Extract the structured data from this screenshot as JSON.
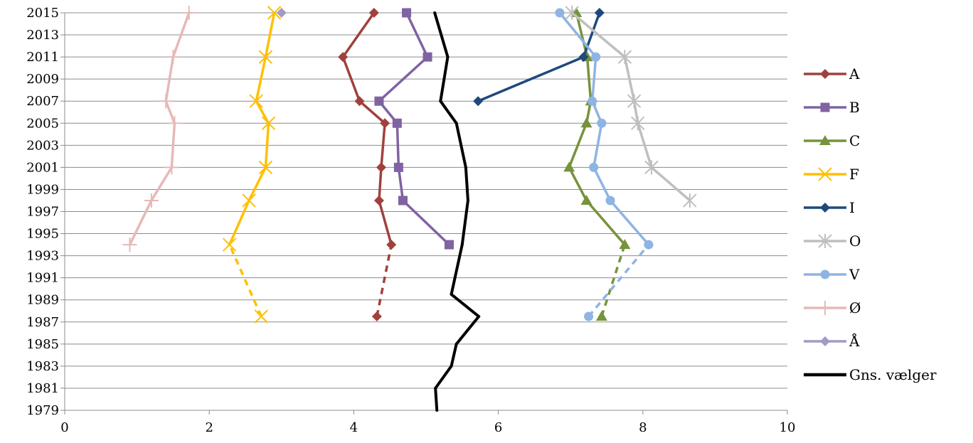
{
  "chart_data": {
    "type": "line",
    "xlim": [
      0,
      10
    ],
    "x_ticks": [
      0,
      2,
      4,
      6,
      8,
      10
    ],
    "x_tick_labels": [
      "0",
      "2",
      "4",
      "6",
      "8",
      "10"
    ],
    "ylim": [
      1979,
      2015
    ],
    "y_ticks": [
      1979,
      1981,
      1983,
      1985,
      1987,
      1989,
      1991,
      1993,
      1995,
      1997,
      1999,
      2001,
      2003,
      2005,
      2007,
      2009,
      2011,
      2013,
      2015
    ],
    "y_tick_labels": [
      "1979",
      "1981",
      "1983",
      "1985",
      "1987",
      "1989",
      "1991",
      "1993",
      "1995",
      "1997",
      "1999",
      "2001",
      "2003",
      "2005",
      "2007",
      "2009",
      "2011",
      "2013",
      "2015"
    ],
    "grid": "horizontal",
    "legend_position": "right",
    "series": [
      {
        "name": "A",
        "color": "#A0413E",
        "marker": "diamond",
        "points": [
          {
            "x": 4.32,
            "y": 1987.5
          },
          {
            "x": 4.52,
            "y": 1994
          },
          {
            "x": 4.35,
            "y": 1998
          },
          {
            "x": 4.38,
            "y": 2001
          },
          {
            "x": 4.43,
            "y": 2005
          },
          {
            "x": 4.08,
            "y": 2007
          },
          {
            "x": 3.85,
            "y": 2011
          },
          {
            "x": 4.28,
            "y": 2015
          }
        ],
        "dashed_segments": [
          0
        ]
      },
      {
        "name": "B",
        "color": "#7F63A2",
        "marker": "square",
        "points": [
          {
            "x": 5.32,
            "y": 1994
          },
          {
            "x": 4.68,
            "y": 1998
          },
          {
            "x": 4.62,
            "y": 2001
          },
          {
            "x": 4.6,
            "y": 2005
          },
          {
            "x": 4.35,
            "y": 2007
          },
          {
            "x": 5.02,
            "y": 2011
          },
          {
            "x": 4.73,
            "y": 2015
          }
        ],
        "dashed_segments": []
      },
      {
        "name": "C",
        "color": "#77933C",
        "marker": "triangle",
        "points": [
          {
            "x": 7.43,
            "y": 1987.5
          },
          {
            "x": 7.75,
            "y": 1994
          },
          {
            "x": 7.22,
            "y": 1998
          },
          {
            "x": 6.98,
            "y": 2001
          },
          {
            "x": 7.22,
            "y": 2005
          },
          {
            "x": 7.28,
            "y": 2007
          },
          {
            "x": 7.23,
            "y": 2011
          },
          {
            "x": 7.08,
            "y": 2015
          }
        ],
        "dashed_segments": [
          0
        ]
      },
      {
        "name": "F",
        "color": "#FFC000",
        "marker": "x",
        "points": [
          {
            "x": 2.72,
            "y": 1987.5
          },
          {
            "x": 2.28,
            "y": 1994
          },
          {
            "x": 2.55,
            "y": 1998
          },
          {
            "x": 2.78,
            "y": 2001
          },
          {
            "x": 2.82,
            "y": 2005
          },
          {
            "x": 2.65,
            "y": 2007
          },
          {
            "x": 2.78,
            "y": 2011
          },
          {
            "x": 2.9,
            "y": 2015
          }
        ],
        "dashed_segments": [
          0
        ]
      },
      {
        "name": "I",
        "color": "#1F497D",
        "marker": "diamond",
        "points": [
          {
            "x": 5.72,
            "y": 2007
          },
          {
            "x": 7.18,
            "y": 2011
          },
          {
            "x": 7.4,
            "y": 2015
          }
        ],
        "dashed_segments": []
      },
      {
        "name": "O",
        "color": "#BFBFBF",
        "marker": "star",
        "points": [
          {
            "x": 8.65,
            "y": 1998
          },
          {
            "x": 8.12,
            "y": 2001
          },
          {
            "x": 7.93,
            "y": 2005
          },
          {
            "x": 7.88,
            "y": 2007
          },
          {
            "x": 7.75,
            "y": 2011
          },
          {
            "x": 7.02,
            "y": 2015
          }
        ],
        "dashed_segments": []
      },
      {
        "name": "V",
        "color": "#8EB4E3",
        "marker": "circle",
        "points": [
          {
            "x": 7.25,
            "y": 1987.5
          },
          {
            "x": 8.08,
            "y": 1994
          },
          {
            "x": 7.55,
            "y": 1998
          },
          {
            "x": 7.32,
            "y": 2001
          },
          {
            "x": 7.43,
            "y": 2005
          },
          {
            "x": 7.3,
            "y": 2007
          },
          {
            "x": 7.35,
            "y": 2011
          },
          {
            "x": 6.85,
            "y": 2015
          }
        ],
        "dashed_segments": [
          0
        ]
      },
      {
        "name": "Ø",
        "color": "#E6B9B8",
        "marker": "plus",
        "points": [
          {
            "x": 0.9,
            "y": 1994
          },
          {
            "x": 1.2,
            "y": 1998
          },
          {
            "x": 1.48,
            "y": 2001
          },
          {
            "x": 1.52,
            "y": 2005
          },
          {
            "x": 1.4,
            "y": 2007
          },
          {
            "x": 1.5,
            "y": 2011
          },
          {
            "x": 1.72,
            "y": 2015
          }
        ],
        "dashed_segments": []
      },
      {
        "name": "Å",
        "color": "#A29BC2",
        "marker": "diamond",
        "points": [
          {
            "x": 3.0,
            "y": 2015
          }
        ],
        "dashed_segments": []
      },
      {
        "name": "Gns. vælger",
        "color": "#000000",
        "marker": "none",
        "points": [
          {
            "x": 5.15,
            "y": 1979
          },
          {
            "x": 5.13,
            "y": 1981
          },
          {
            "x": 5.35,
            "y": 1983
          },
          {
            "x": 5.42,
            "y": 1985
          },
          {
            "x": 5.73,
            "y": 1987.5
          },
          {
            "x": 5.35,
            "y": 1989.5
          },
          {
            "x": 5.5,
            "y": 1994
          },
          {
            "x": 5.58,
            "y": 1998
          },
          {
            "x": 5.55,
            "y": 2001
          },
          {
            "x": 5.42,
            "y": 2005
          },
          {
            "x": 5.2,
            "y": 2007
          },
          {
            "x": 5.3,
            "y": 2011
          },
          {
            "x": 5.12,
            "y": 2015
          }
        ],
        "dashed_segments": []
      }
    ]
  }
}
